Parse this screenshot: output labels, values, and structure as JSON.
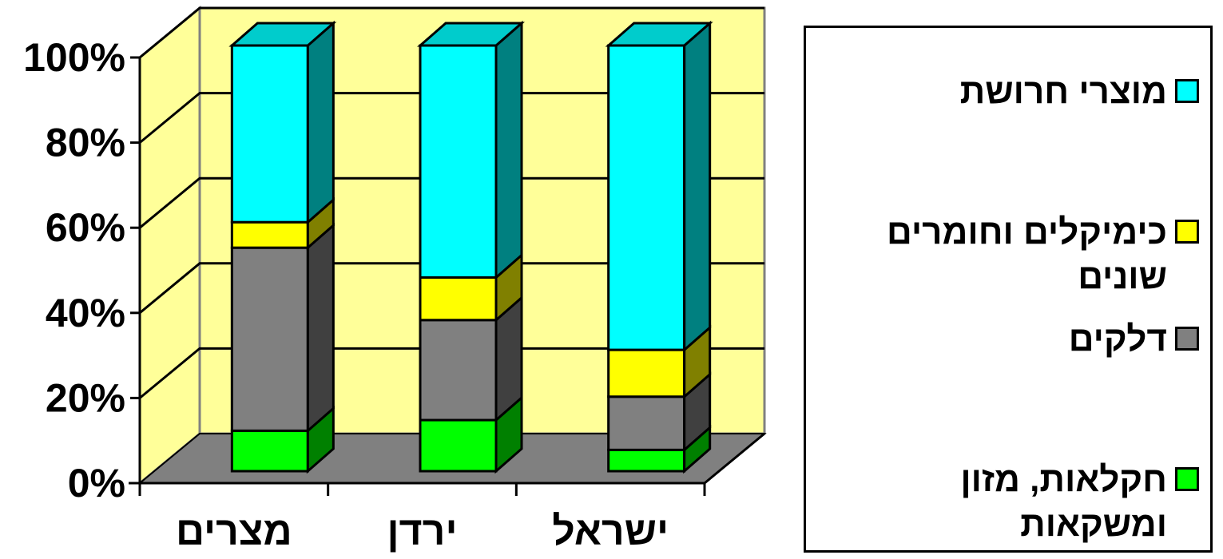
{
  "chart_data": {
    "type": "bar",
    "stacked": true,
    "percent_stacked": true,
    "three_d": true,
    "categories": [
      "מצרים",
      "ירדן",
      "ישראל"
    ],
    "series": [
      {
        "name": "חקלאות, מזון ומשקאות",
        "values": [
          9.5,
          12,
          5
        ],
        "color": "#00ff00"
      },
      {
        "name": "דלקים",
        "values": [
          43,
          23.5,
          12.5
        ],
        "color": "#808080"
      },
      {
        "name": "כימיקלים וחומרים שונים",
        "values": [
          6,
          10,
          11
        ],
        "color": "#ffff00"
      },
      {
        "name": "מוצרי חרושת",
        "values": [
          41.5,
          54.5,
          71.5
        ],
        "color": "#00ffff"
      }
    ],
    "y_ticks": [
      "0%",
      "20%",
      "40%",
      "60%",
      "80%",
      "100%"
    ],
    "ylim": [
      0,
      100
    ],
    "legend_position": "right",
    "grid": true,
    "wall_color": "#ffff99",
    "floor_color": "#808080"
  },
  "legend": {
    "items": [
      {
        "label": "מוצרי חרושת",
        "color": "#00ffff"
      },
      {
        "label": "כימיקלים וחומרים שונים",
        "color": "#ffff00"
      },
      {
        "label": "דלקים",
        "color": "#808080"
      },
      {
        "label": "חקלאות, מזון ומשקאות",
        "color": "#00ff00"
      }
    ]
  }
}
